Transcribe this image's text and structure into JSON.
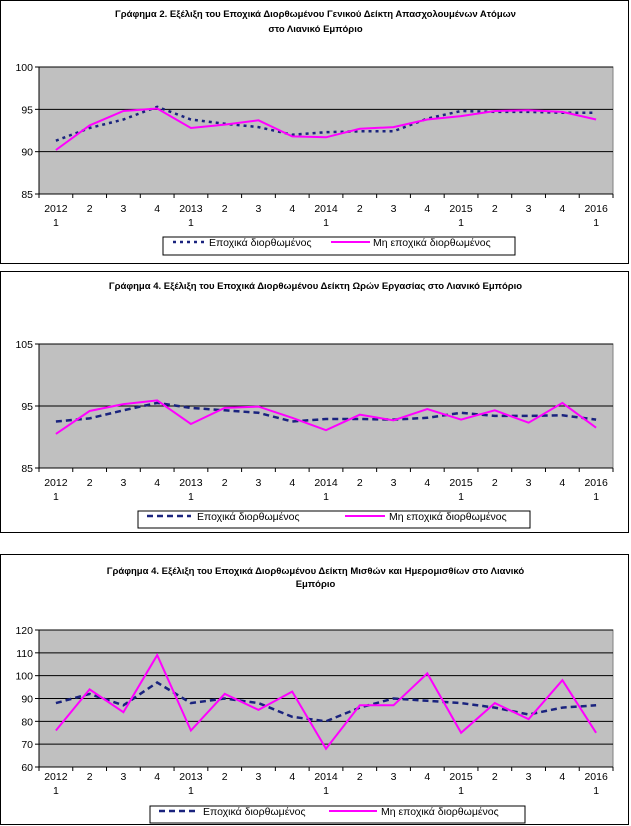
{
  "colors": {
    "adjusted": "#1a237e",
    "unadjusted": "#ff00ff",
    "plot_bg": "#c0c0c0"
  },
  "chart_data": [
    {
      "type": "line",
      "title": [
        "Γράφημα 2. Εξέλιξη του Εποχικά Διορθωμένου Γενικού Δείκτη Απασχολουμένων Ατόμων",
        "στο Λιανικό Εμπόριο"
      ],
      "categories": [
        "2012 1",
        "2",
        "3",
        "4",
        "2013 1",
        "2",
        "3",
        "4",
        "2014 1",
        "2",
        "3",
        "4",
        "2015 1",
        "2",
        "3",
        "4",
        "2016 1"
      ],
      "x_tick_top": [
        "2012",
        "2",
        "3",
        "4",
        "2013",
        "2",
        "3",
        "4",
        "2014",
        "2",
        "3",
        "4",
        "2015",
        "2",
        "3",
        "4",
        "2016"
      ],
      "x_tick_bottom": [
        "1",
        "",
        "",
        "",
        "1",
        "",
        "",
        "",
        "1",
        "",
        "",
        "",
        "1",
        "",
        "",
        "",
        "1"
      ],
      "ylim": [
        85,
        100
      ],
      "yticks": [
        85,
        90,
        95,
        100
      ],
      "grid": true,
      "legend": "bottom",
      "series": [
        {
          "name": "Εποχικά διορθωμένος",
          "style": "dotted",
          "values": [
            91.3,
            92.8,
            93.8,
            95.3,
            93.8,
            93.3,
            92.9,
            92.0,
            92.3,
            92.4,
            92.4,
            93.9,
            94.8,
            94.7,
            94.7,
            94.6,
            94.6
          ]
        },
        {
          "name": "Μη εποχικά διορθωμένος",
          "style": "solid",
          "values": [
            90.2,
            93.1,
            94.8,
            95.1,
            92.8,
            93.2,
            93.7,
            91.8,
            91.7,
            92.7,
            92.9,
            93.8,
            94.2,
            94.8,
            94.9,
            94.7,
            93.8
          ]
        }
      ]
    },
    {
      "type": "line",
      "title": [
        "Γράφημα 4. Εξέλιξη του Εποχικά Διορθωμένου Δείκτη Ωρών Εργασίας στο Λιανικό Εμπόριο"
      ],
      "categories": [
        "2012 1",
        "2",
        "3",
        "4",
        "2013 1",
        "2",
        "3",
        "4",
        "2014 1",
        "2",
        "3",
        "4",
        "2015 1",
        "2",
        "3",
        "4",
        "2016 1"
      ],
      "x_tick_top": [
        "2012",
        "2",
        "3",
        "4",
        "2013",
        "2",
        "3",
        "4",
        "2014",
        "2",
        "3",
        "4",
        "2015",
        "2",
        "3",
        "4",
        "2016"
      ],
      "x_tick_bottom": [
        "1",
        "",
        "",
        "",
        "1",
        "",
        "",
        "",
        "1",
        "",
        "",
        "",
        "1",
        "",
        "",
        "",
        "1"
      ],
      "ylim": [
        85,
        105
      ],
      "yticks": [
        85,
        95,
        105
      ],
      "grid": true,
      "legend": "bottom",
      "series": [
        {
          "name": "Εποχικά διορθωμένος",
          "style": "dashed",
          "values": [
            92.5,
            93.0,
            94.3,
            95.5,
            94.7,
            94.3,
            93.9,
            92.5,
            92.9,
            92.9,
            92.8,
            93.1,
            93.9,
            93.4,
            93.4,
            93.5,
            92.8
          ]
        },
        {
          "name": "Μη εποχικά διορθωμένος",
          "style": "solid",
          "values": [
            90.5,
            94.2,
            95.3,
            95.9,
            92.1,
            94.7,
            94.9,
            93.1,
            91.1,
            93.6,
            92.7,
            94.5,
            92.8,
            94.3,
            92.3,
            95.5,
            91.5
          ]
        }
      ]
    },
    {
      "type": "line",
      "title": [
        "Γράφημα 4. Εξέλιξη του Εποχικά Διορθωμένου Δείκτη Μισθών και Ημερομισθίων στο Λιανικό",
        "Εμπόριο"
      ],
      "categories": [
        "2012 1",
        "2",
        "3",
        "4",
        "2013 1",
        "2",
        "3",
        "4",
        "2014 1",
        "2",
        "3",
        "4",
        "2015 1",
        "2",
        "3",
        "4",
        "2016 1"
      ],
      "x_tick_top": [
        "2012",
        "2",
        "3",
        "4",
        "2013",
        "2",
        "3",
        "4",
        "2014",
        "2",
        "3",
        "4",
        "2015",
        "2",
        "3",
        "4",
        "2016"
      ],
      "x_tick_bottom": [
        "1",
        "",
        "",
        "",
        "1",
        "",
        "",
        "",
        "1",
        "",
        "",
        "",
        "1",
        "",
        "",
        "",
        "1"
      ],
      "ylim": [
        60,
        120
      ],
      "yticks": [
        60,
        70,
        80,
        90,
        100,
        110,
        120
      ],
      "grid": true,
      "legend": "bottom",
      "series": [
        {
          "name": "Εποχικά διορθωμένος",
          "style": "dashed",
          "values": [
            88,
            92,
            87,
            97,
            88,
            90,
            88,
            82,
            80,
            86,
            90,
            89,
            88,
            86,
            83,
            86,
            87
          ]
        },
        {
          "name": "Μη εποχικά διορθωμένος",
          "style": "solid",
          "values": [
            76,
            94,
            84,
            109,
            76,
            92,
            85,
            93,
            68,
            87,
            87,
            101,
            75,
            88,
            81,
            98,
            75
          ]
        }
      ]
    }
  ]
}
